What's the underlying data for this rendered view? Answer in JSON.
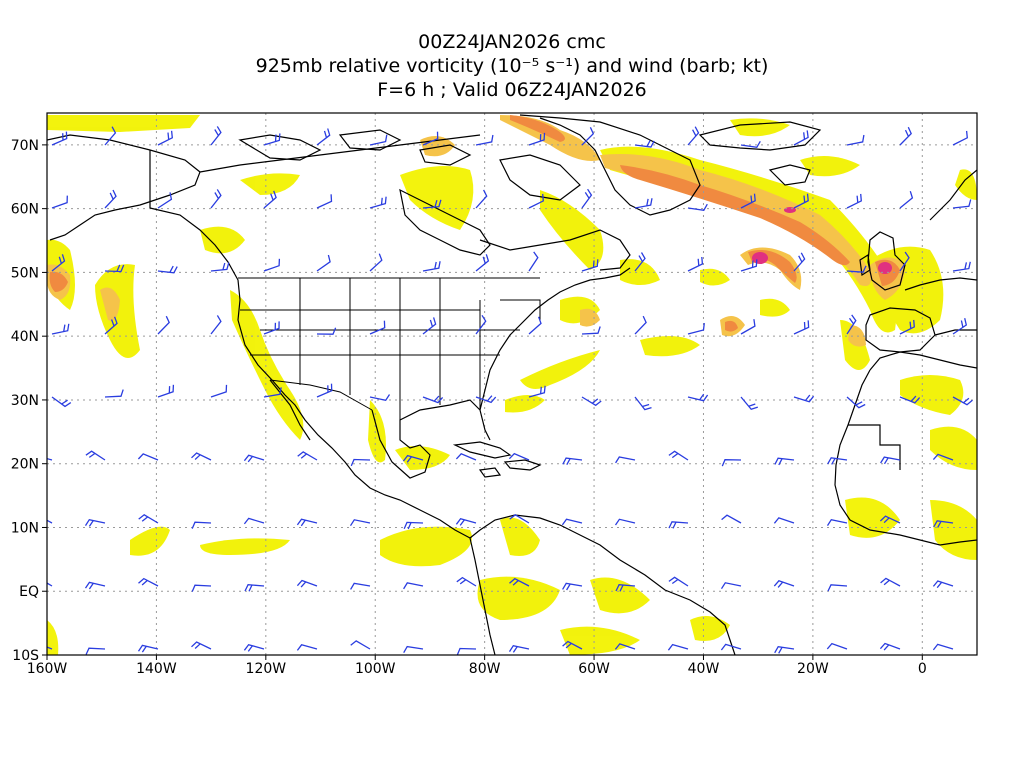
{
  "title": {
    "line1": "00Z24JAN2026 cmc",
    "line2": "925mb relative vorticity (10⁻⁵ s⁻¹) and wind (barb; kt)",
    "line3": "F=6 h ; Valid 06Z24JAN2026"
  },
  "map": {
    "lon_range": [
      -160,
      10
    ],
    "lat_range": [
      -10,
      75
    ],
    "x_ticks": [
      {
        "lon": -160,
        "label": "160W"
      },
      {
        "lon": -140,
        "label": "140W"
      },
      {
        "lon": -120,
        "label": "120W"
      },
      {
        "lon": -100,
        "label": "100W"
      },
      {
        "lon": -80,
        "label": "80W"
      },
      {
        "lon": -60,
        "label": "60W"
      },
      {
        "lon": -40,
        "label": "40W"
      },
      {
        "lon": -20,
        "label": "20W"
      },
      {
        "lon": 0,
        "label": "0"
      }
    ],
    "y_ticks": [
      {
        "lat": 70,
        "label": "70N"
      },
      {
        "lat": 60,
        "label": "60N"
      },
      {
        "lat": 50,
        "label": "50N"
      },
      {
        "lat": 40,
        "label": "40N"
      },
      {
        "lat": 30,
        "label": "30N"
      },
      {
        "lat": 20,
        "label": "20N"
      },
      {
        "lat": 10,
        "label": "10N"
      },
      {
        "lat": 0,
        "label": "EQ"
      },
      {
        "lat": -10,
        "label": "10S"
      }
    ],
    "colors": {
      "low": "#f2f200",
      "mid": "#f5c34a",
      "high": "#f08a40",
      "peak": "#e03080",
      "barb": "#2a3de0",
      "coast": "#000000",
      "grid": "#9a9a9a"
    }
  }
}
